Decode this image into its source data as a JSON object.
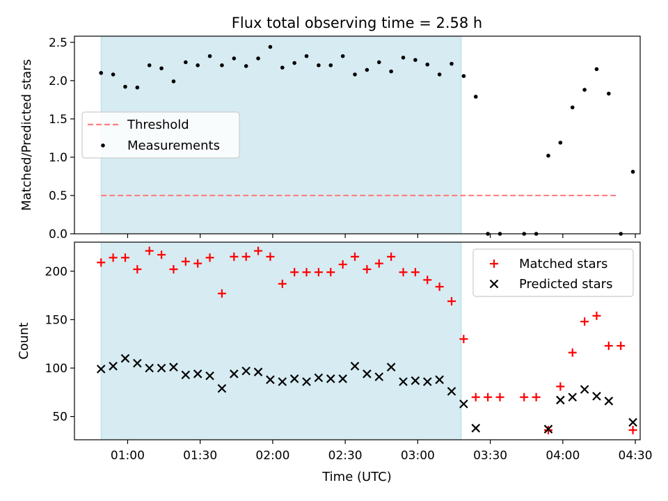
{
  "figure": {
    "title": "Flux total observing time = 2.58 h",
    "xlabel": "Time (UTC)"
  },
  "chart_data": [
    {
      "type": "scatter",
      "panel": "top",
      "title": "Flux total observing time = 2.58 h",
      "ylabel": "Matched/Predicted stars",
      "xlim": [
        "00:38",
        "04:32"
      ],
      "ylim": [
        0,
        2.58
      ],
      "yticks": [
        0.0,
        0.5,
        1.0,
        1.5,
        2.0,
        2.5
      ],
      "ytick_labels": [
        "0.0",
        "0.5",
        "1.0",
        "1.5",
        "2.0",
        "2.5"
      ],
      "grid": false,
      "legend_placement": "center-left",
      "shaded_interval": {
        "start": "00:49",
        "end": "03:18",
        "color": "#add8e6",
        "alpha": 0.5
      },
      "threshold": {
        "name": "Threshold",
        "value": 0.5,
        "x_range": [
          "00:49",
          "04:22"
        ],
        "color": "#ff7f7f",
        "style": "dashed"
      },
      "series": [
        {
          "name": "Measurements",
          "marker": "dot",
          "color": "#000000",
          "points": [
            [
              "00:49",
              2.1
            ],
            [
              "00:54",
              2.08
            ],
            [
              "00:59",
              1.92
            ],
            [
              "01:04",
              1.91
            ],
            [
              "01:09",
              2.2
            ],
            [
              "01:14",
              2.16
            ],
            [
              "01:19",
              1.99
            ],
            [
              "01:24",
              2.24
            ],
            [
              "01:29",
              2.2
            ],
            [
              "01:34",
              2.32
            ],
            [
              "01:39",
              2.2
            ],
            [
              "01:44",
              2.29
            ],
            [
              "01:49",
              2.19
            ],
            [
              "01:54",
              2.29
            ],
            [
              "01:59",
              2.44
            ],
            [
              "02:04",
              2.17
            ],
            [
              "02:09",
              2.23
            ],
            [
              "02:14",
              2.32
            ],
            [
              "02:19",
              2.2
            ],
            [
              "02:24",
              2.2
            ],
            [
              "02:29",
              2.32
            ],
            [
              "02:34",
              2.08
            ],
            [
              "02:39",
              2.14
            ],
            [
              "02:44",
              2.24
            ],
            [
              "02:49",
              2.12
            ],
            [
              "02:54",
              2.3
            ],
            [
              "02:59",
              2.27
            ],
            [
              "03:04",
              2.21
            ],
            [
              "03:09",
              2.08
            ],
            [
              "03:14",
              2.22
            ],
            [
              "03:19",
              2.06
            ],
            [
              "03:24",
              1.79
            ],
            [
              "03:29",
              0.0
            ],
            [
              "03:34",
              0.0
            ],
            [
              "03:44",
              0.0
            ],
            [
              "03:49",
              0.0
            ],
            [
              "03:54",
              1.02
            ],
            [
              "03:59",
              1.19
            ],
            [
              "04:04",
              1.65
            ],
            [
              "04:09",
              1.88
            ],
            [
              "04:14",
              2.15
            ],
            [
              "04:19",
              1.83
            ],
            [
              "04:24",
              0.0
            ],
            [
              "04:29",
              0.81
            ]
          ]
        }
      ]
    },
    {
      "type": "scatter",
      "panel": "bottom",
      "xlabel": "Time (UTC)",
      "ylabel": "Count",
      "xlim": [
        "00:38",
        "04:32"
      ],
      "ylim": [
        26,
        230
      ],
      "xticks": [
        "01:00",
        "01:30",
        "02:00",
        "02:30",
        "03:00",
        "03:30",
        "04:00",
        "04:30"
      ],
      "yticks": [
        50,
        100,
        150,
        200
      ],
      "ytick_labels": [
        "50",
        "100",
        "150",
        "200"
      ],
      "grid": false,
      "legend_placement": "top-right",
      "shaded_interval": {
        "start": "00:49",
        "end": "03:18",
        "color": "#add8e6",
        "alpha": 0.5
      },
      "series": [
        {
          "name": "Matched stars",
          "marker": "plus",
          "color": "#ff0000",
          "points": [
            [
              "00:49",
              209
            ],
            [
              "00:54",
              214
            ],
            [
              "00:59",
              214
            ],
            [
              "01:04",
              202
            ],
            [
              "01:09",
              221
            ],
            [
              "01:14",
              217
            ],
            [
              "01:19",
              202
            ],
            [
              "01:24",
              210
            ],
            [
              "01:29",
              208
            ],
            [
              "01:34",
              214
            ],
            [
              "01:39",
              177
            ],
            [
              "01:44",
              215
            ],
            [
              "01:49",
              215
            ],
            [
              "01:54",
              221
            ],
            [
              "01:59",
              215
            ],
            [
              "02:04",
              187
            ],
            [
              "02:09",
              199
            ],
            [
              "02:14",
              199
            ],
            [
              "02:19",
              199
            ],
            [
              "02:24",
              199
            ],
            [
              "02:29",
              207
            ],
            [
              "02:34",
              215
            ],
            [
              "02:39",
              202
            ],
            [
              "02:44",
              208
            ],
            [
              "02:49",
              215
            ],
            [
              "02:54",
              199
            ],
            [
              "02:59",
              199
            ],
            [
              "03:04",
              191
            ],
            [
              "03:09",
              184
            ],
            [
              "03:14",
              169
            ],
            [
              "03:19",
              130
            ],
            [
              "03:24",
              70
            ],
            [
              "03:29",
              70
            ],
            [
              "03:34",
              70
            ],
            [
              "03:44",
              70
            ],
            [
              "03:49",
              70
            ],
            [
              "03:54",
              36
            ],
            [
              "03:59",
              81
            ],
            [
              "04:04",
              116
            ],
            [
              "04:09",
              148
            ],
            [
              "04:14",
              154
            ],
            [
              "04:19",
              123
            ],
            [
              "04:24",
              123
            ],
            [
              "04:29",
              36
            ]
          ]
        },
        {
          "name": "Predicted stars",
          "marker": "x",
          "color": "#000000",
          "points": [
            [
              "00:49",
              99
            ],
            [
              "00:54",
              102
            ],
            [
              "00:59",
              110
            ],
            [
              "01:04",
              105
            ],
            [
              "01:09",
              100
            ],
            [
              "01:14",
              100
            ],
            [
              "01:19",
              101
            ],
            [
              "01:24",
              93
            ],
            [
              "01:29",
              94
            ],
            [
              "01:34",
              92
            ],
            [
              "01:39",
              79
            ],
            [
              "01:44",
              94
            ],
            [
              "01:49",
              97
            ],
            [
              "01:54",
              96
            ],
            [
              "01:59",
              88
            ],
            [
              "02:04",
              86
            ],
            [
              "02:09",
              89
            ],
            [
              "02:14",
              86
            ],
            [
              "02:19",
              90
            ],
            [
              "02:24",
              89
            ],
            [
              "02:29",
              89
            ],
            [
              "02:34",
              102
            ],
            [
              "02:39",
              94
            ],
            [
              "02:44",
              91
            ],
            [
              "02:49",
              101
            ],
            [
              "02:54",
              86
            ],
            [
              "02:59",
              87
            ],
            [
              "03:04",
              86
            ],
            [
              "03:09",
              88
            ],
            [
              "03:14",
              76
            ],
            [
              "03:19",
              63
            ],
            [
              "03:24",
              38
            ],
            [
              "03:54",
              37
            ],
            [
              "03:59",
              67
            ],
            [
              "04:04",
              70
            ],
            [
              "04:09",
              78
            ],
            [
              "04:14",
              71
            ],
            [
              "04:19",
              66
            ],
            [
              "04:29",
              44
            ]
          ]
        }
      ]
    }
  ]
}
